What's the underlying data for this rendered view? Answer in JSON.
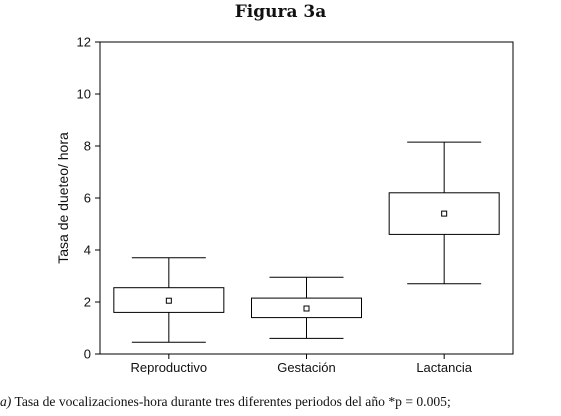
{
  "figure_title": "Figura 3a",
  "caption": {
    "label": "a)",
    "text": "Tasa de vocalizaciones-hora durante tres diferentes periodos del año *p = 0.005;"
  },
  "chart_data": {
    "type": "boxplot",
    "title": "",
    "xlabel": "",
    "ylabel": "Tasa de dueteo/ hora",
    "ylim": [
      0,
      12
    ],
    "yticks": [
      0,
      2,
      4,
      6,
      8,
      10,
      12
    ],
    "grid": false,
    "categories": [
      "Reproductivo",
      "Gestación",
      "Lactancia"
    ],
    "boxes": [
      {
        "category": "Reproductivo",
        "whisker_low": 0.45,
        "q1": 1.6,
        "mean": 2.05,
        "q3": 2.55,
        "whisker_high": 3.7
      },
      {
        "category": "Gestación",
        "whisker_low": 0.6,
        "q1": 1.4,
        "mean": 1.75,
        "q3": 2.15,
        "whisker_high": 2.95
      },
      {
        "category": "Lactancia",
        "whisker_low": 2.7,
        "q1": 4.6,
        "mean": 5.4,
        "q3": 6.2,
        "whisker_high": 8.15
      }
    ]
  }
}
